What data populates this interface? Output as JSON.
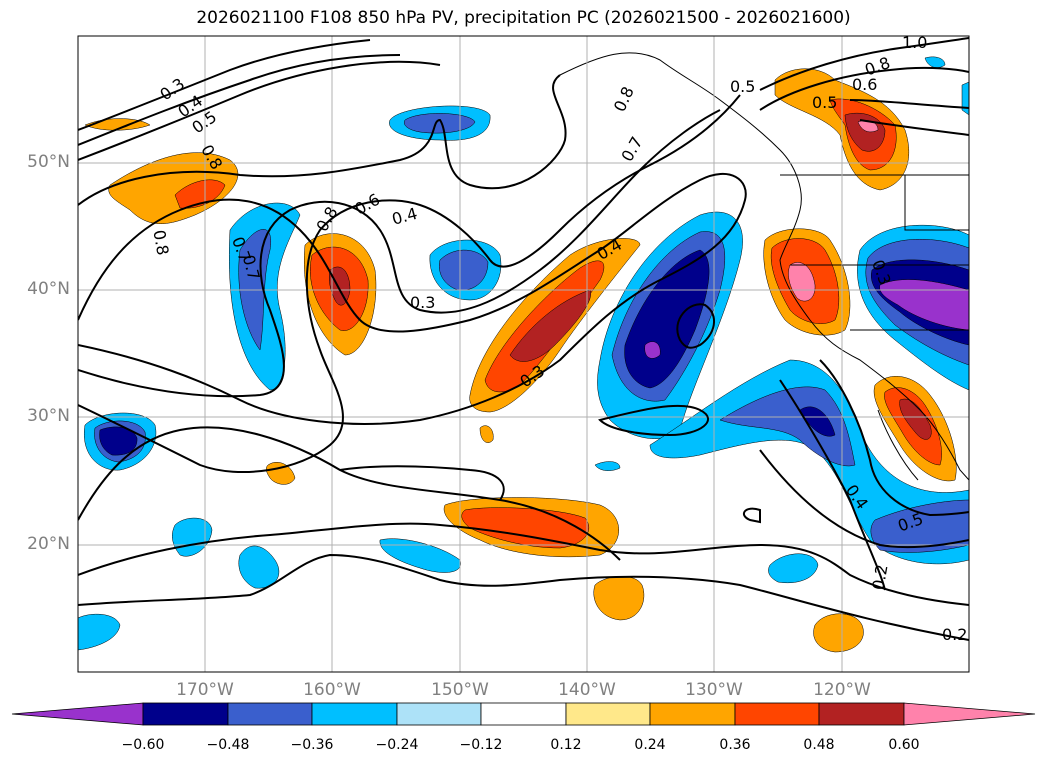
{
  "title": "2026021100 F108 850 hPa PV, precipitation PC (2026021500 - 2026021600)",
  "lat_labels": [
    "50°N",
    "40°N",
    "30°N",
    "20°N"
  ],
  "lon_labels": [
    "170°W",
    "160°W",
    "150°W",
    "140°W",
    "130°W",
    "120°W"
  ],
  "contour_labels": [
    "0.3",
    "0.4",
    "0.5",
    "0.7",
    "0.8",
    "0.8",
    "0.7",
    "0.8",
    "0.6",
    "0.4",
    "0.3",
    "0.7",
    "0.8",
    "0.4",
    "0.3",
    "0.5",
    "0.5",
    "1.0",
    "0.8",
    "0.6",
    "0.4",
    "0.5",
    "0.2",
    "0.2",
    "0.3"
  ],
  "colorbar": {
    "ticks": [
      "−0.60",
      "−0.48",
      "−0.36",
      "−0.24",
      "−0.12",
      "0.12",
      "0.24",
      "0.36",
      "0.48",
      "0.60"
    ],
    "colors": [
      "#9932CC",
      "#00008B",
      "#3A5FCD",
      "#00BFFF",
      "#ADE2F8",
      "#FFFFFF",
      "#FFE88A",
      "#FFA500",
      "#FF4500",
      "#B22222",
      "#FF82AB"
    ]
  }
}
